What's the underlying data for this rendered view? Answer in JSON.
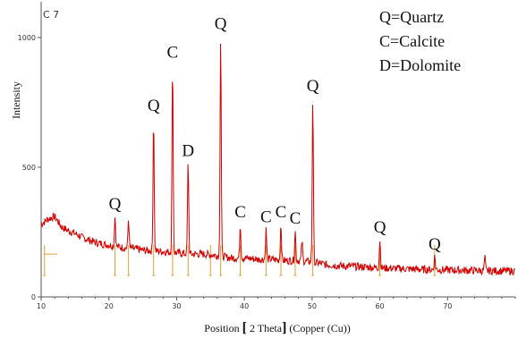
{
  "chart_data": {
    "type": "line",
    "sample_label": "C 7",
    "xlabel_parts": [
      "Position ",
      "[",
      " 2 Theta",
      "]",
      " (Copper (Cu))"
    ],
    "ylabel": "Intensity",
    "xlim": [
      10,
      80
    ],
    "ylim": [
      0,
      1100
    ],
    "x_ticks": [
      10,
      20,
      30,
      40,
      50,
      60,
      70
    ],
    "y_ticks": [
      0,
      500,
      1000
    ],
    "legend": [
      "Q=Quartz",
      "C=Calcite",
      "D=Dolomite"
    ],
    "line_color": "#d40000",
    "marker_color": "#e0a030",
    "background_points": [
      [
        10.0,
        280
      ],
      [
        11,
        300
      ],
      [
        12,
        310
      ],
      [
        13,
        270
      ],
      [
        14,
        255
      ],
      [
        15,
        245
      ],
      [
        16,
        230
      ],
      [
        17,
        220
      ],
      [
        18,
        210
      ],
      [
        19,
        205
      ],
      [
        20,
        200
      ],
      [
        22,
        190
      ],
      [
        24,
        185
      ],
      [
        25,
        180
      ],
      [
        28,
        175
      ],
      [
        30,
        170
      ],
      [
        32,
        165
      ],
      [
        34,
        165
      ],
      [
        36,
        160
      ],
      [
        38,
        150
      ],
      [
        40,
        150
      ],
      [
        42,
        145
      ],
      [
        44,
        145
      ],
      [
        46,
        140
      ],
      [
        48,
        140
      ],
      [
        50,
        135
      ],
      [
        52,
        125
      ],
      [
        54,
        120
      ],
      [
        56,
        118
      ],
      [
        58,
        115
      ],
      [
        60,
        112
      ],
      [
        62,
        110
      ],
      [
        64,
        108
      ],
      [
        66,
        106
      ],
      [
        68,
        105
      ],
      [
        70,
        104
      ],
      [
        72,
        103
      ],
      [
        74,
        102
      ],
      [
        76,
        101
      ],
      [
        78,
        100
      ],
      [
        80,
        100
      ]
    ],
    "peaks": [
      {
        "x": 20.9,
        "intensity": 310,
        "label": "Q"
      },
      {
        "x": 22.9,
        "intensity": 300,
        "label": ""
      },
      {
        "x": 26.6,
        "intensity": 690,
        "label": "Q"
      },
      {
        "x": 29.4,
        "intensity": 895,
        "label": "C"
      },
      {
        "x": 31.7,
        "intensity": 515,
        "label": "D"
      },
      {
        "x": 36.5,
        "intensity": 1005,
        "label": "Q"
      },
      {
        "x": 39.4,
        "intensity": 280,
        "label": "C"
      },
      {
        "x": 43.2,
        "intensity": 260,
        "label": "C"
      },
      {
        "x": 45.4,
        "intensity": 280,
        "label": "C"
      },
      {
        "x": 47.5,
        "intensity": 255,
        "label": "C"
      },
      {
        "x": 48.5,
        "intensity": 215,
        "label": ""
      },
      {
        "x": 50.1,
        "intensity": 765,
        "label": "Q"
      },
      {
        "x": 60.0,
        "intensity": 220,
        "label": "Q"
      },
      {
        "x": 68.1,
        "intensity": 155,
        "label": "Q"
      },
      {
        "x": 75.5,
        "intensity": 150,
        "label": ""
      }
    ],
    "reference_lines": [
      10.5,
      20.9,
      22.9,
      26.6,
      29.4,
      31.7,
      35.0,
      36.5,
      39.4,
      43.2,
      45.4,
      47.5,
      50.1,
      60.0,
      68.1
    ]
  }
}
